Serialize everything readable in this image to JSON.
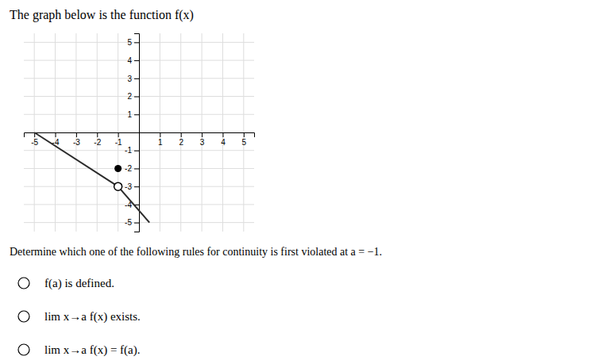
{
  "chart_data": {
    "type": "line",
    "title": "The graph below is the function f(x)",
    "series": [
      {
        "x": [
          -5,
          -1
        ],
        "values": [
          0,
          -3
        ],
        "color": "#2b2b2b"
      },
      {
        "x": [
          -1,
          0.5
        ],
        "values": [
          -3,
          -5
        ],
        "color": "#2b2b2b"
      },
      {
        "type": "scatter",
        "x": [
          -1
        ],
        "values": [
          -2
        ],
        "color": "black",
        "marker": "filled-circle"
      },
      {
        "type": "scatter",
        "x": [
          -1
        ],
        "values": [
          -3
        ],
        "color": "black",
        "marker": "open-circle"
      }
    ],
    "xlim": [
      -5.5,
      5.5
    ],
    "ylim": [
      -5.5,
      5.5
    ],
    "xticks": [
      -5,
      -4,
      -3,
      -2,
      -1,
      1,
      2,
      3,
      4,
      5
    ],
    "yticks": [
      -5,
      -4,
      -3,
      -2,
      -1,
      1,
      2,
      3,
      4,
      5
    ],
    "grid": true,
    "annotations": [
      "Determine which one of the following rules for continuity is first violated at a = −1.",
      "f(a) is defined.",
      "lim x→a f(x) exists.",
      "lim x→a f(x) = f(a)."
    ]
  }
}
